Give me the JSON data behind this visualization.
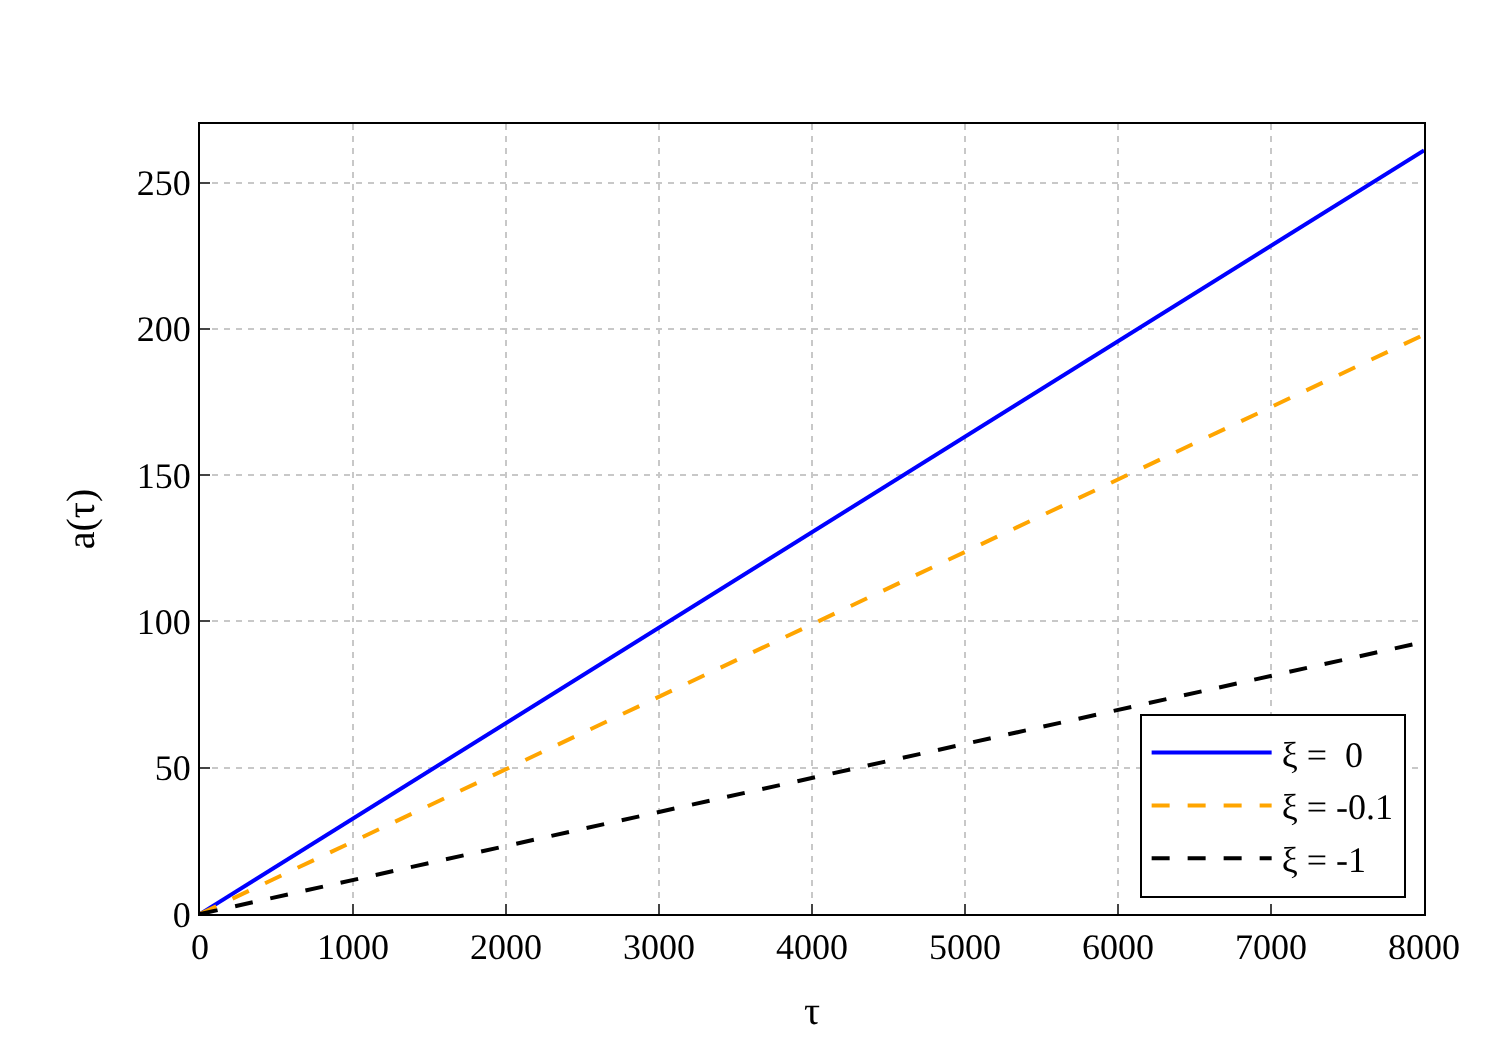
{
  "chart_data": {
    "type": "line",
    "xlabel": "τ",
    "ylabel": "a(τ)",
    "x": [
      0,
      8000
    ],
    "series": [
      {
        "name": "ξ =  0",
        "color": "#0000ff",
        "values": [
          0,
          261
        ],
        "line_style": "solid"
      },
      {
        "name": "ξ = -0.1",
        "color": "#ffa500",
        "values": [
          0,
          198
        ],
        "line_style": "dashed"
      },
      {
        "name": "ξ = -1",
        "color": "#000000",
        "values": [
          0,
          93
        ],
        "line_style": "dashed"
      }
    ],
    "xlim": [
      0,
      8000
    ],
    "ylim": [
      0,
      270
    ],
    "xticks": [
      0,
      1000,
      2000,
      3000,
      4000,
      5000,
      6000,
      7000,
      8000
    ],
    "yticks": [
      0,
      50,
      100,
      150,
      200,
      250
    ],
    "grid": true,
    "legend": "bottom right",
    "marker": "none"
  }
}
